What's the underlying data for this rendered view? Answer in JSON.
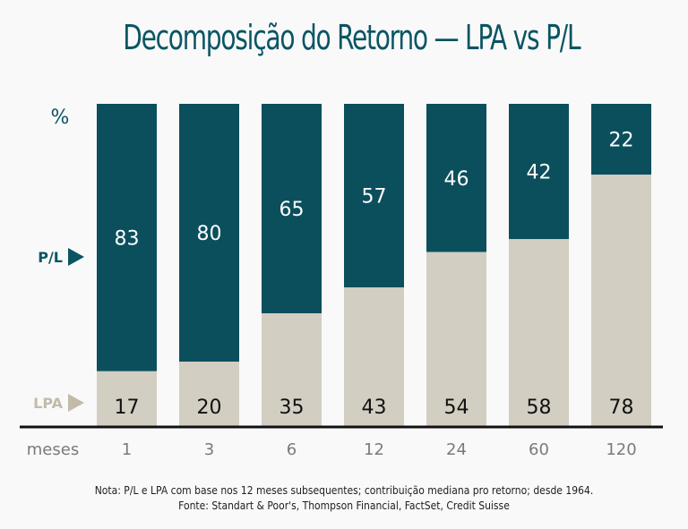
{
  "title": "Decomposição do Retorno — LPA vs P/L",
  "colors": {
    "pl": "#0b4f5d",
    "lpa": "#d2cec2",
    "title": "#0b5563",
    "axis": "#111111",
    "tick": "#7a7a7a",
    "lpa_label": "#c2bba8"
  },
  "chart_data": {
    "type": "bar",
    "stacked": true,
    "title": "Decomposição do Retorno — LPA vs P/L",
    "xlabel": "meses",
    "ylabel": "%",
    "ylim": [
      0,
      100
    ],
    "categories": [
      "1",
      "3",
      "6",
      "12",
      "24",
      "60",
      "120"
    ],
    "series": [
      {
        "name": "LPA",
        "values": [
          17,
          20,
          35,
          43,
          54,
          58,
          78
        ]
      },
      {
        "name": "P/L",
        "values": [
          83,
          80,
          65,
          57,
          46,
          42,
          22
        ]
      }
    ],
    "legend": [
      "P/L",
      "LPA"
    ],
    "legend_placement": "left",
    "grid": false
  },
  "labels": {
    "unit": "%",
    "pl_legend": "P/L",
    "lpa_legend": "LPA",
    "x_axis_label": "meses"
  },
  "notes": {
    "nota": "Nota: P/L e LPA com base nos 12 meses subsequentes; contribuição mediana pro retorno; desde 1964.",
    "fonte": "Fonte: Standart & Poor's, Thompson Financial, FactSet, Credit Suisse"
  }
}
